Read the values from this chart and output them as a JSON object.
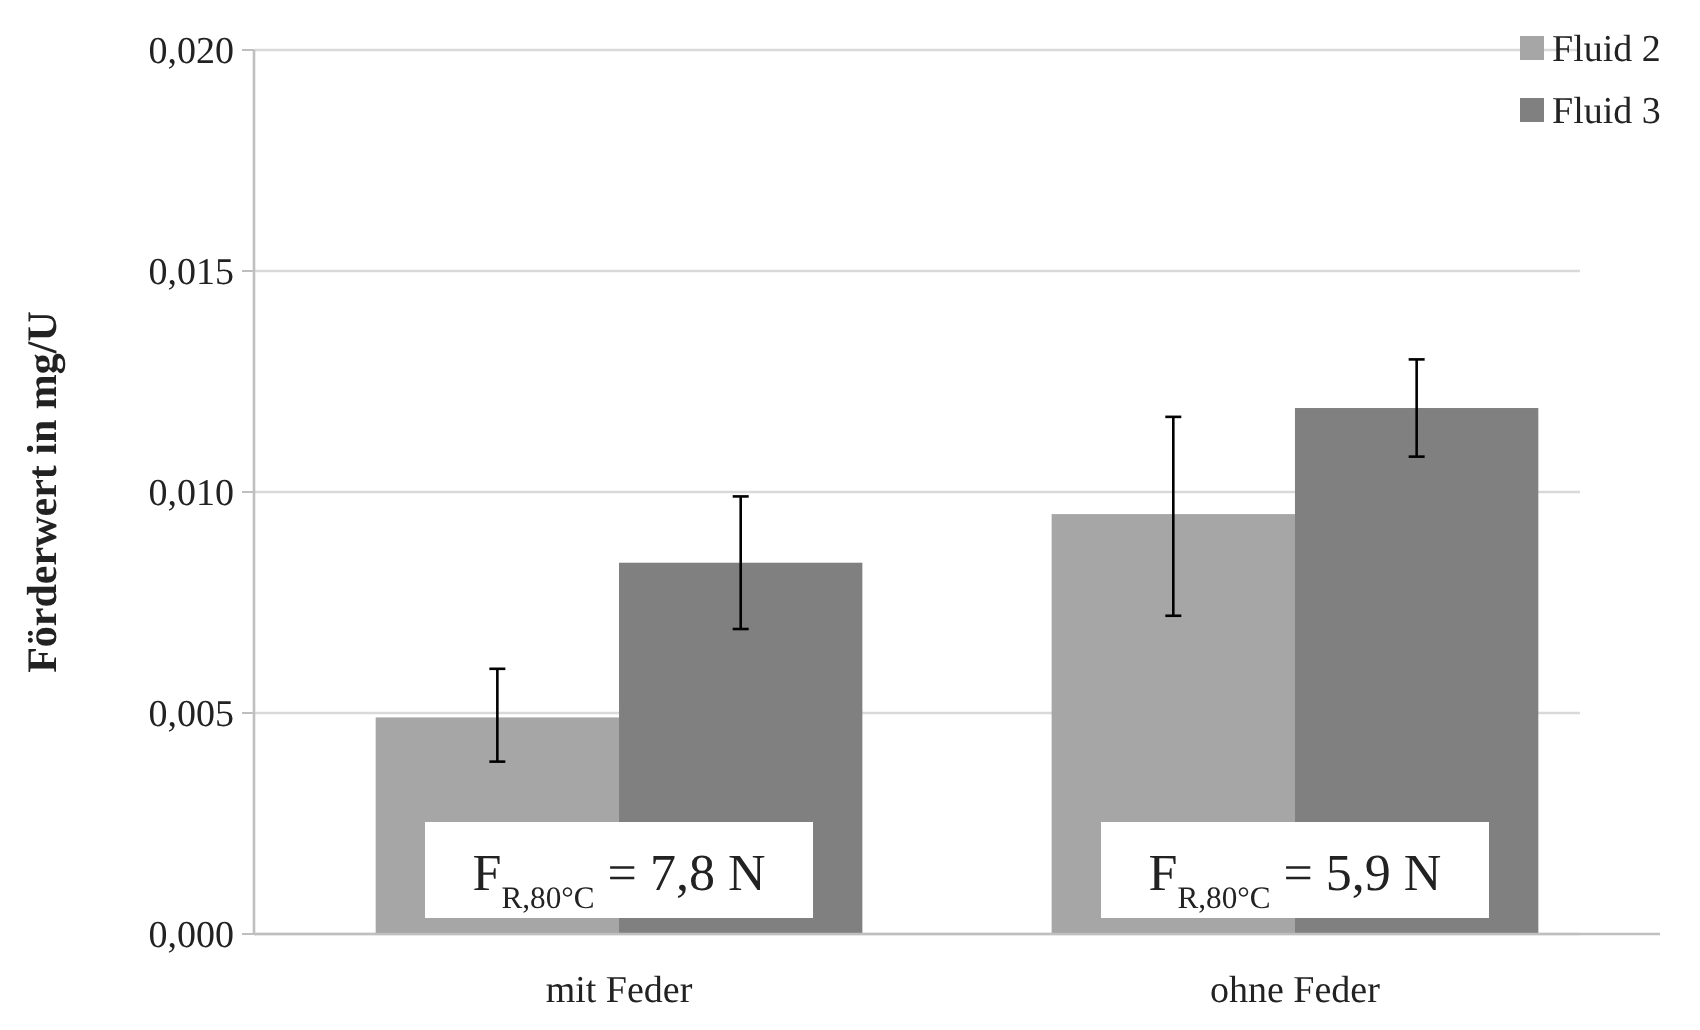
{
  "chart_data": {
    "type": "bar",
    "ylabel": "Förderwert in mg/U",
    "categories": [
      "mit Feder",
      "ohne Feder"
    ],
    "series": [
      {
        "name": "Fluid 2",
        "color": "#a6a6a6",
        "values": [
          0.0049,
          0.0095
        ],
        "errors": [
          [
            0.0039,
            0.006
          ],
          [
            0.0072,
            0.0117
          ]
        ]
      },
      {
        "name": "Fluid 3",
        "color": "#808080",
        "values": [
          0.0084,
          0.0119
        ],
        "errors": [
          [
            0.0069,
            0.0099
          ],
          [
            0.0108,
            0.013
          ]
        ]
      }
    ],
    "ylim": [
      0,
      0.02
    ],
    "yticks": [
      {
        "value": 0,
        "label": "0,000"
      },
      {
        "value": 0.005,
        "label": "0,005"
      },
      {
        "value": 0.01,
        "label": "0,010"
      },
      {
        "value": 0.015,
        "label": "0,015"
      },
      {
        "value": 0.02,
        "label": "0,020"
      }
    ],
    "grid": "y",
    "legend": "top right",
    "annotations": [
      "F$_{R,80°C}$ = 7,8 N",
      "F$_{R,80°C}$ = 5,9 N"
    ]
  }
}
